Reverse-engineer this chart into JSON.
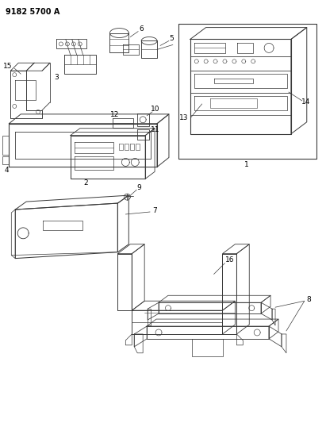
{
  "title": "9182 5700 A",
  "background_color": "#ffffff",
  "line_color": "#3a3a3a",
  "fig_width": 4.11,
  "fig_height": 5.33,
  "dpi": 100
}
